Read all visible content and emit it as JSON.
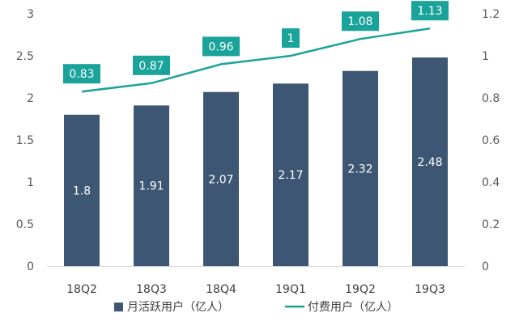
{
  "chart_data": {
    "type": "bar",
    "categories": [
      "18Q2",
      "18Q3",
      "18Q4",
      "19Q1",
      "19Q2",
      "19Q3"
    ],
    "series": [
      {
        "name": "月活跃用户（亿人）",
        "type": "bar",
        "axis": "left",
        "color": "#3d5673",
        "values": [
          1.8,
          1.91,
          2.07,
          2.17,
          2.32,
          2.48
        ],
        "labels": [
          "1.8",
          "1.91",
          "2.07",
          "2.17",
          "2.32",
          "2.48"
        ]
      },
      {
        "name": "付费用户（亿人）",
        "type": "line",
        "axis": "right",
        "color": "#1aa39a",
        "values": [
          0.83,
          0.87,
          0.96,
          1.0,
          1.08,
          1.13
        ],
        "labels": [
          "0.83",
          "0.87",
          "0.96",
          "1",
          "1.08",
          "1.13"
        ]
      }
    ],
    "y_left": {
      "lim": [
        0,
        3
      ],
      "ticks": [
        "0",
        "0.5",
        "1",
        "1.5",
        "2",
        "2.5",
        "3"
      ]
    },
    "y_right": {
      "lim": [
        0,
        1.2
      ],
      "ticks": [
        "0",
        "0.2",
        "0.4",
        "0.6",
        "0.8",
        "1",
        "1.2"
      ]
    },
    "grid": false,
    "legend_position": "bottom"
  }
}
